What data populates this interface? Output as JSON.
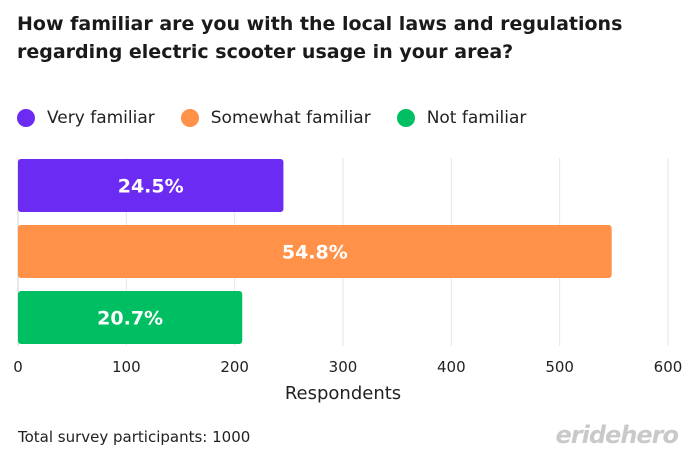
{
  "chart_data": {
    "type": "bar",
    "orientation": "horizontal",
    "title": "How familiar are you with the local laws and regulations regarding electric scooter usage in your area?",
    "categories": [
      "Very familiar",
      "Somewhat familiar",
      "Not familiar"
    ],
    "values": [
      245,
      548,
      207
    ],
    "data_labels": [
      "24.5%",
      "54.8%",
      "20.7%"
    ],
    "colors": [
      "#6C2BF2",
      "#FF9248",
      "#00BF63"
    ],
    "xlabel": "Respondents",
    "ylabel": "",
    "xlim": [
      0,
      600
    ],
    "xticks": [
      "0",
      "100",
      "200",
      "300",
      "400",
      "500",
      "600"
    ],
    "grid": "vertical",
    "legend": "top-left"
  },
  "footer": {
    "note": "Total survey participants: 1000",
    "logo": "eridehero"
  }
}
